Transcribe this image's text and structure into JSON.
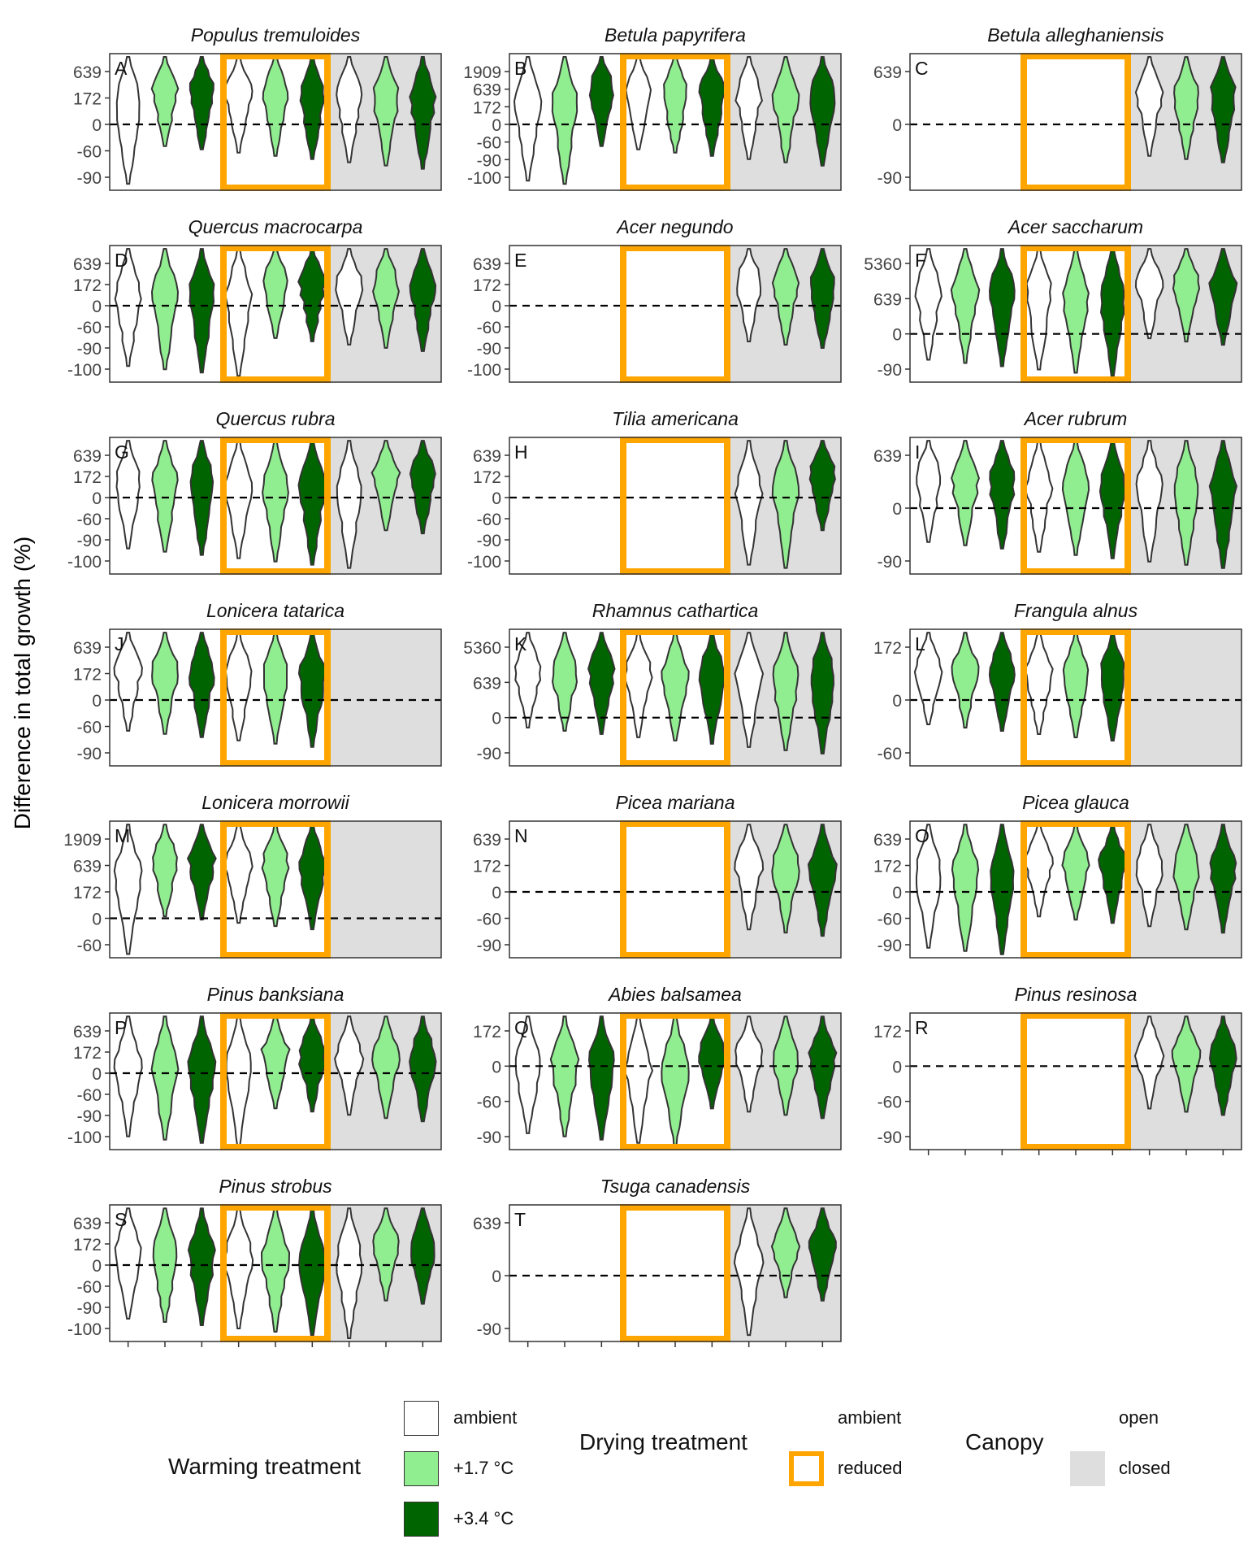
{
  "figure": {
    "y_axis_label": "Difference in total growth (%)"
  },
  "legend": {
    "warming": {
      "title": "Warming treatment",
      "items": [
        {
          "label": "ambient",
          "color": "#ffffff"
        },
        {
          "label": "+1.7 °C",
          "color": "#90ee90"
        },
        {
          "label": "+3.4 °C",
          "color": "#006400"
        }
      ]
    },
    "drying": {
      "title": "Drying treatment",
      "items": [
        {
          "label": "ambient"
        },
        {
          "label": "reduced",
          "color": "#ffa500"
        }
      ]
    },
    "canopy": {
      "title": "Canopy",
      "items": [
        {
          "label": "open"
        },
        {
          "label": "closed",
          "color": "#dedede"
        }
      ]
    }
  },
  "chart_data": {
    "type": "violin",
    "groups": [
      "open / ambient drying",
      "open / reduced drying",
      "closed"
    ],
    "warming_levels": [
      "ambient",
      "+1.7 °C",
      "+3.4 °C"
    ],
    "panels": [
      {
        "letter": "A",
        "species": "Populus tremuloides",
        "yticks": [
          "639",
          "172",
          "0",
          "-60",
          "-90"
        ],
        "present": [
          1,
          1,
          1,
          1,
          1,
          1,
          1,
          1,
          1
        ]
      },
      {
        "letter": "B",
        "species": "Betula papyrifera",
        "yticks": [
          "1909",
          "639",
          "172",
          "0",
          "-60",
          "-90",
          "-100"
        ],
        "present": [
          1,
          1,
          1,
          1,
          1,
          1,
          1,
          1,
          1
        ]
      },
      {
        "letter": "C",
        "species": "Betula alleghaniensis",
        "yticks": [
          "639",
          "0",
          "-90"
        ],
        "present": [
          0,
          0,
          0,
          0,
          0,
          0,
          1,
          1,
          1
        ]
      },
      {
        "letter": "D",
        "species": "Quercus macrocarpa",
        "yticks": [
          "639",
          "172",
          "0",
          "-60",
          "-90",
          "-100"
        ],
        "present": [
          1,
          1,
          1,
          1,
          1,
          1,
          1,
          1,
          1
        ]
      },
      {
        "letter": "E",
        "species": "Acer negundo",
        "yticks": [
          "639",
          "172",
          "0",
          "-60",
          "-90",
          "-100"
        ],
        "present": [
          0,
          0,
          0,
          0,
          0,
          0,
          1,
          1,
          1
        ]
      },
      {
        "letter": "F",
        "species": "Acer saccharum",
        "yticks": [
          "5360",
          "639",
          "0",
          "-90"
        ],
        "present": [
          1,
          1,
          1,
          1,
          1,
          1,
          1,
          1,
          1
        ]
      },
      {
        "letter": "G",
        "species": "Quercus rubra",
        "yticks": [
          "639",
          "172",
          "0",
          "-60",
          "-90",
          "-100"
        ],
        "present": [
          1,
          1,
          1,
          1,
          1,
          1,
          1,
          1,
          1
        ]
      },
      {
        "letter": "H",
        "species": "Tilia americana",
        "yticks": [
          "639",
          "172",
          "0",
          "-60",
          "-90",
          "-100"
        ],
        "present": [
          0,
          0,
          0,
          0,
          0,
          0,
          1,
          1,
          1
        ]
      },
      {
        "letter": "I",
        "species": "Acer rubrum",
        "yticks": [
          "639",
          "0",
          "-90"
        ],
        "present": [
          1,
          1,
          1,
          1,
          1,
          1,
          1,
          1,
          1
        ]
      },
      {
        "letter": "J",
        "species": "Lonicera tatarica",
        "yticks": [
          "639",
          "172",
          "0",
          "-60",
          "-90"
        ],
        "present": [
          1,
          1,
          1,
          1,
          1,
          1,
          0,
          0,
          0
        ]
      },
      {
        "letter": "K",
        "species": "Rhamnus cathartica",
        "yticks": [
          "5360",
          "639",
          "0",
          "-90"
        ],
        "present": [
          1,
          1,
          1,
          1,
          1,
          1,
          1,
          1,
          1
        ]
      },
      {
        "letter": "L",
        "species": "Frangula alnus",
        "yticks": [
          "172",
          "0",
          "-60"
        ],
        "present": [
          1,
          1,
          1,
          1,
          1,
          1,
          0,
          0,
          0
        ]
      },
      {
        "letter": "M",
        "species": "Lonicera morrowii",
        "yticks": [
          "1909",
          "639",
          "172",
          "0",
          "-60"
        ],
        "present": [
          1,
          1,
          1,
          1,
          1,
          1,
          0,
          0,
          0
        ]
      },
      {
        "letter": "N",
        "species": "Picea mariana",
        "yticks": [
          "639",
          "172",
          "0",
          "-60",
          "-90"
        ],
        "present": [
          0,
          0,
          0,
          0,
          0,
          0,
          1,
          1,
          1
        ]
      },
      {
        "letter": "O",
        "species": "Picea glauca",
        "yticks": [
          "639",
          "172",
          "0",
          "-60",
          "-90"
        ],
        "present": [
          1,
          1,
          1,
          1,
          1,
          1,
          1,
          1,
          1
        ]
      },
      {
        "letter": "P",
        "species": "Pinus banksiana",
        "yticks": [
          "639",
          "172",
          "0",
          "-60",
          "-90",
          "-100"
        ],
        "present": [
          1,
          1,
          1,
          1,
          1,
          1,
          1,
          1,
          1
        ]
      },
      {
        "letter": "Q",
        "species": "Abies balsamea",
        "yticks": [
          "172",
          "0",
          "-60",
          "-90"
        ],
        "present": [
          1,
          1,
          1,
          1,
          1,
          1,
          1,
          1,
          1
        ]
      },
      {
        "letter": "R",
        "species": "Pinus resinosa",
        "yticks": [
          "172",
          "0",
          "-60",
          "-90"
        ],
        "present": [
          0,
          0,
          0,
          0,
          0,
          0,
          1,
          1,
          1
        ]
      },
      {
        "letter": "S",
        "species": "Pinus strobus",
        "yticks": [
          "639",
          "172",
          "0",
          "-60",
          "-90",
          "-100"
        ],
        "present": [
          1,
          1,
          1,
          1,
          1,
          1,
          1,
          1,
          1
        ]
      },
      {
        "letter": "T",
        "species": "Tsuga canadensis",
        "yticks": [
          "639",
          "0",
          "-90"
        ],
        "present": [
          0,
          0,
          0,
          0,
          0,
          0,
          1,
          1,
          1
        ]
      }
    ],
    "reference_line": 0,
    "grid": false
  }
}
